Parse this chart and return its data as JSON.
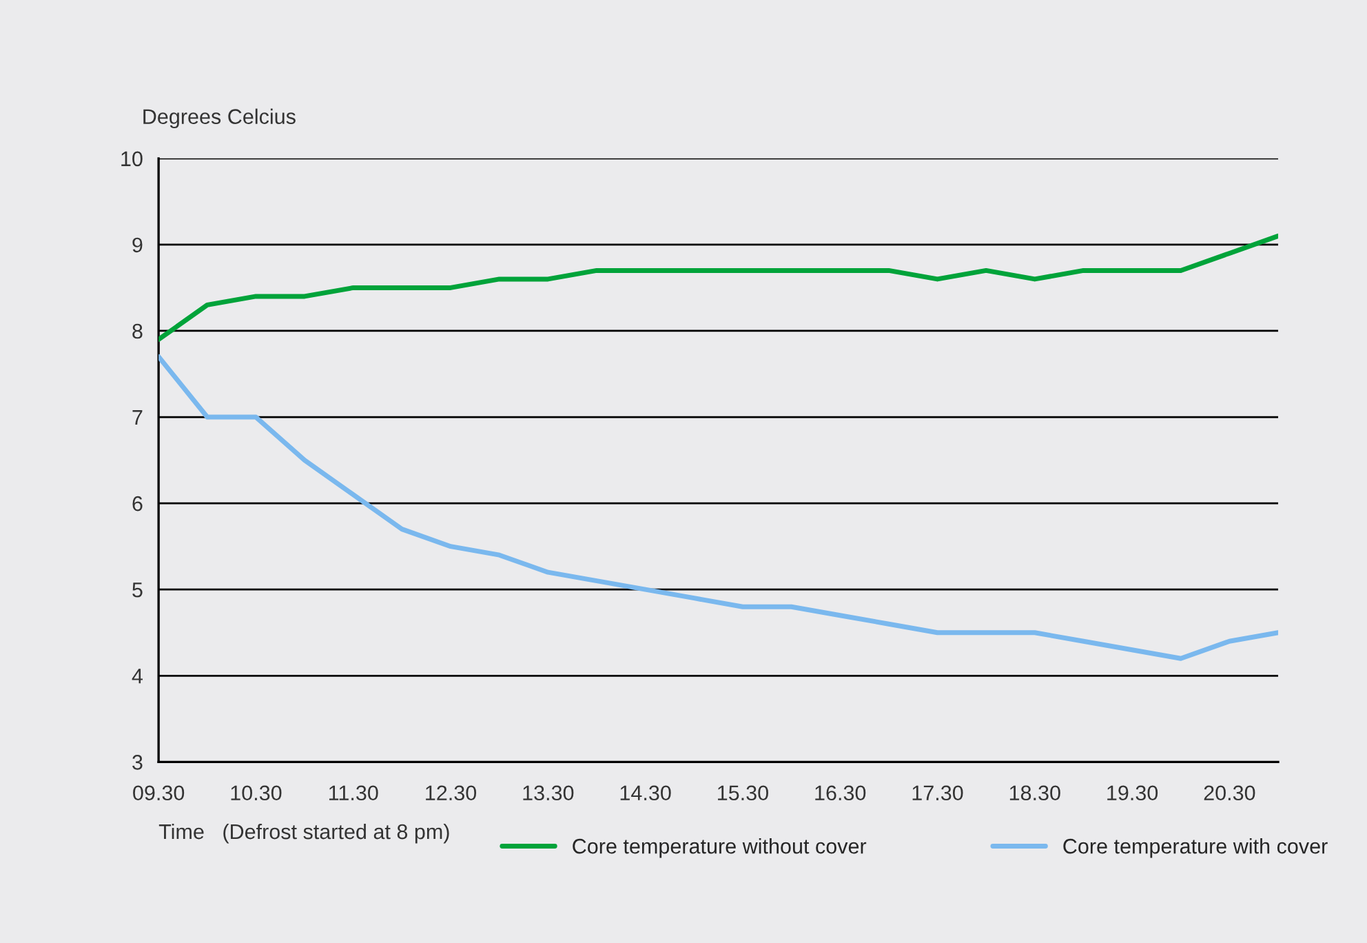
{
  "chart_data": {
    "type": "line",
    "ylabel": "Degrees Celcius",
    "xlabel": "Time   (Defrost started at 8 pm)",
    "categories": [
      "09.30",
      null,
      "10.30",
      null,
      "11.30",
      null,
      "12.30",
      null,
      "13.30",
      null,
      "14.30",
      null,
      "15.30",
      null,
      "16.30",
      null,
      "17.30",
      null,
      "18.30",
      null,
      "19.30",
      null,
      "20.30",
      null
    ],
    "series": [
      {
        "name": "Core temperature without cover",
        "color": "#00a33a",
        "values": [
          7.9,
          8.3,
          8.4,
          8.4,
          8.5,
          8.5,
          8.5,
          8.6,
          8.6,
          8.7,
          8.7,
          8.7,
          8.7,
          8.7,
          8.7,
          8.7,
          8.6,
          8.7,
          8.6,
          8.7,
          8.7,
          8.7,
          8.9,
          9.1
        ]
      },
      {
        "name": "Core temperature with cover",
        "color": "#7ab8ee",
        "values": [
          7.7,
          7.0,
          7.0,
          6.5,
          6.1,
          5.7,
          5.5,
          5.4,
          5.2,
          5.1,
          5.0,
          4.9,
          4.8,
          4.8,
          4.7,
          4.6,
          4.5,
          4.5,
          4.5,
          4.4,
          4.3,
          4.2,
          4.4,
          4.5
        ]
      }
    ],
    "ylim": [
      3,
      10
    ],
    "yticks": [
      3,
      4,
      5,
      6,
      7,
      8,
      9,
      10
    ],
    "grid": "y",
    "legend": "bottom",
    "marker": "none",
    "line_style": "solid"
  }
}
